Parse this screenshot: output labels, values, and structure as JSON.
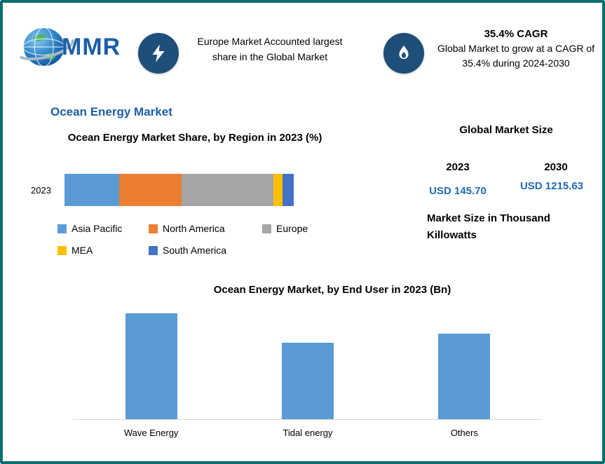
{
  "page": {
    "border_color": "#0d6d6d",
    "accent_blue": "#1b5fa8",
    "icon_circle_color": "#1f4e79",
    "value_blue": "#1f6cb5"
  },
  "header": {
    "logo": {
      "text": "MMR"
    },
    "callout_left": {
      "icon": "lightning-icon",
      "text": "Europe Market Accounted largest share in the Global Market"
    },
    "callout_right": {
      "icon": "flame-icon",
      "title": "35.4% CAGR",
      "text": "Global Market to grow at a CAGR of 35.4% during 2024-2030"
    }
  },
  "main_title": "Ocean Energy Market",
  "market_size": {
    "title": "Global Market Size",
    "year_1": "2023",
    "year_2": "2030",
    "value_1": "USD 145.70",
    "value_2": "USD 1215.63",
    "note": "Market Size in Thousand Killowatts"
  },
  "chart_data": [
    {
      "type": "bar",
      "subtype": "stacked-horizontal",
      "title": "Ocean Energy Market Share, by Region in 2023 (%)",
      "categories": [
        "2023"
      ],
      "series": [
        {
          "name": "Asia Pacific",
          "color": "#5b9bd5",
          "values": [
            24
          ]
        },
        {
          "name": "North America",
          "color": "#ed7d31",
          "values": [
            27
          ]
        },
        {
          "name": "Europe",
          "color": "#a5a5a5",
          "values": [
            40
          ]
        },
        {
          "name": "MEA",
          "color": "#ffc000",
          "values": [
            4
          ]
        },
        {
          "name": "South America",
          "color": "#4472c4",
          "values": [
            5
          ]
        }
      ],
      "xlim": [
        0,
        100
      ],
      "legend_position": "bottom"
    },
    {
      "type": "bar",
      "title": "Ocean Energy Market, by End User  in 2023 (Bn)",
      "categories": [
        "Wave Energy",
        "Tidal energy",
        "Others"
      ],
      "values": [
        58,
        42,
        47
      ],
      "bar_color": "#5b9bd5",
      "ylim": [
        0,
        60
      ],
      "grid": false
    }
  ]
}
